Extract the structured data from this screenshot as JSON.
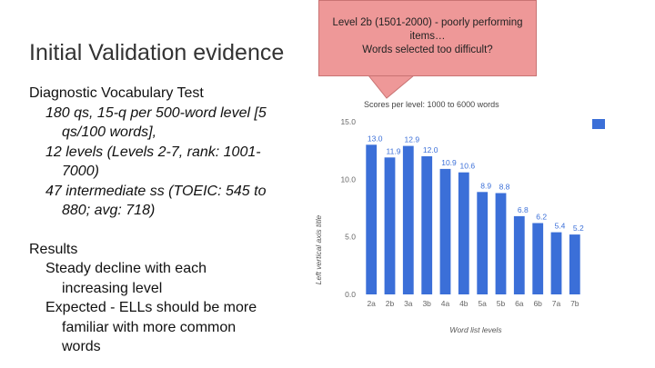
{
  "slide": {
    "title": "Initial Validation evidence",
    "body": {
      "heading1": "Diagnostic Vocabulary Test",
      "item1_line1": "180 qs, 15-q per 500-word level [5",
      "item1_line2": "qs/100 words],",
      "item2_line1": "12 levels (Levels 2-7, rank: 1001-",
      "item2_line2": "7000)",
      "item3_line1": "47 intermediate ss (TOEIC: 545 to",
      "item3_line2": "880; avg: 718)",
      "heading2": "Results",
      "item4_line1": "Steady decline with each",
      "item4_line2": "increasing level",
      "item5_line1": "Expected - ELLs should be more",
      "item5_line2": "familiar with more common",
      "item5_line3": "words"
    },
    "callout": {
      "line1": "Level 2b (1501-2000) - poorly performing",
      "line2": "items…",
      "line3": "Words selected too difficult?"
    }
  },
  "colors": {
    "bar": "#3b6fd8",
    "callout_bg": "#ee9898"
  },
  "chart_data": {
    "type": "bar",
    "title": "Scores per level: 1000 to 6000 words",
    "xlabel": "Word list levels",
    "ylabel": "Left vertical axis title",
    "categories": [
      "2a",
      "2b",
      "3a",
      "3b",
      "4a",
      "4b",
      "5a",
      "5b",
      "6a",
      "6b",
      "7a",
      "7b"
    ],
    "values": [
      13.0,
      11.9,
      12.9,
      12.0,
      10.9,
      10.6,
      8.9,
      8.8,
      6.8,
      6.2,
      5.4,
      5.2
    ],
    "value_labels": [
      "13.0",
      "11.9",
      "12.9",
      "12.0",
      "10.9",
      "10.6",
      "8.9",
      "8.8",
      "6.8",
      "6.2",
      "5.4",
      "5.2"
    ],
    "yticks": [
      "0.0",
      "5.0",
      "10.0",
      "15.0"
    ],
    "ylim": [
      0,
      15
    ],
    "grid": false,
    "legend": "right"
  }
}
